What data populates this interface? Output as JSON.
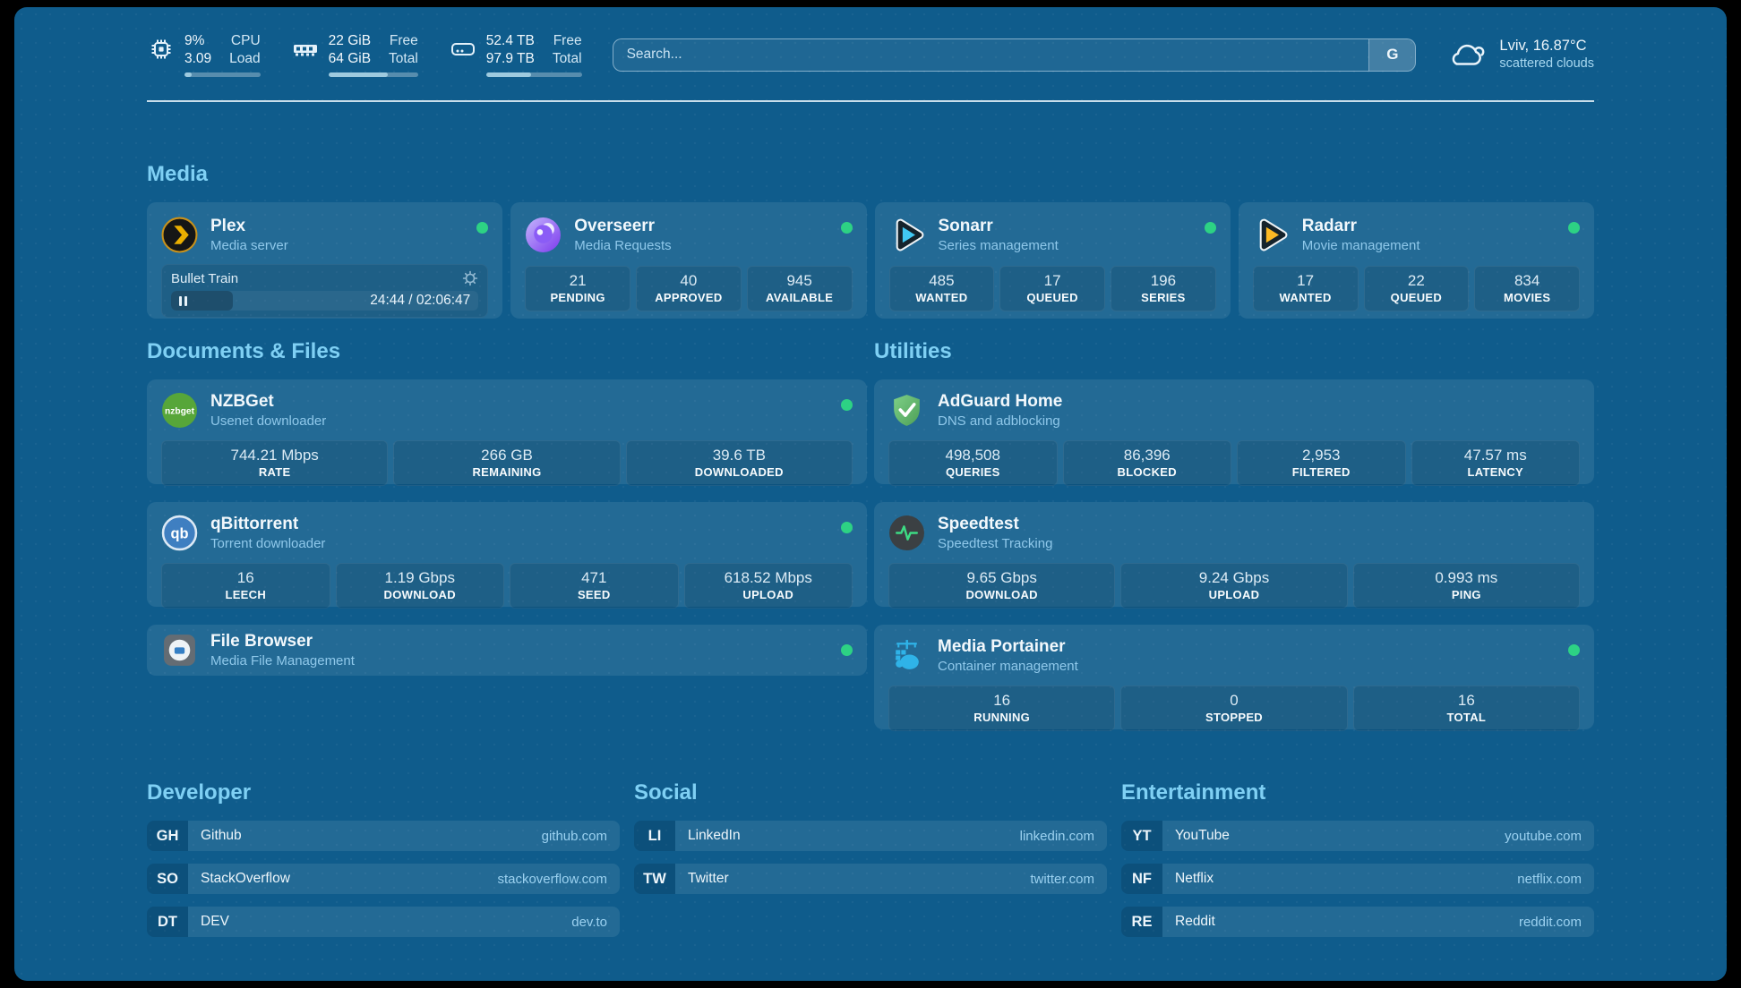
{
  "colors": {
    "background": "#0f5c8c",
    "card": "#2a6f9e",
    "heading": "#7fd0f4",
    "status_online": "#2dd284",
    "link_url": "#9bd1f0"
  },
  "header": {
    "stats": [
      {
        "icon": "cpu-icon",
        "value1": "9%",
        "value2": "3.09",
        "label1": "CPU",
        "label2": "Load",
        "progress": 10
      },
      {
        "icon": "memory-icon",
        "value1": "22 GiB",
        "value2": "64 GiB",
        "label1": "Free",
        "label2": "Total",
        "progress": 66
      },
      {
        "icon": "disk-icon",
        "value1": "52.4 TB",
        "value2": "97.9 TB",
        "label1": "Free",
        "label2": "Total",
        "progress": 47
      }
    ],
    "search": {
      "placeholder": "Search...",
      "button": "G"
    },
    "weather": {
      "location": "Lviv, 16.87°C",
      "condition": "scattered clouds"
    }
  },
  "sections": {
    "media": {
      "title": "Media"
    },
    "documents": {
      "title": "Documents & Files"
    },
    "utilities": {
      "title": "Utilities"
    }
  },
  "services": {
    "plex": {
      "name": "Plex",
      "description": "Media server",
      "status": "online",
      "now_playing": {
        "title": "Bullet Train",
        "time": "24:44 / 02:06:47",
        "progress": 20
      }
    },
    "overseerr": {
      "name": "Overseerr",
      "description": "Media Requests",
      "status": "online",
      "stats": [
        {
          "value": "21",
          "label": "PENDING"
        },
        {
          "value": "40",
          "label": "APPROVED"
        },
        {
          "value": "945",
          "label": "AVAILABLE"
        }
      ]
    },
    "sonarr": {
      "name": "Sonarr",
      "description": "Series management",
      "status": "online",
      "stats": [
        {
          "value": "485",
          "label": "WANTED"
        },
        {
          "value": "17",
          "label": "QUEUED"
        },
        {
          "value": "196",
          "label": "SERIES"
        }
      ]
    },
    "radarr": {
      "name": "Radarr",
      "description": "Movie management",
      "status": "online",
      "stats": [
        {
          "value": "17",
          "label": "WANTED"
        },
        {
          "value": "22",
          "label": "QUEUED"
        },
        {
          "value": "834",
          "label": "MOVIES"
        }
      ]
    },
    "nzbget": {
      "name": "NZBGet",
      "description": "Usenet downloader",
      "status": "online",
      "stats": [
        {
          "value": "744.21 Mbps",
          "label": "RATE"
        },
        {
          "value": "266 GB",
          "label": "REMAINING"
        },
        {
          "value": "39.6 TB",
          "label": "DOWNLOADED"
        }
      ]
    },
    "qbittorrent": {
      "name": "qBittorrent",
      "description": "Torrent downloader",
      "status": "online",
      "stats": [
        {
          "value": "16",
          "label": "LEECH"
        },
        {
          "value": "1.19 Gbps",
          "label": "DOWNLOAD"
        },
        {
          "value": "471",
          "label": "SEED"
        },
        {
          "value": "618.52 Mbps",
          "label": "UPLOAD"
        }
      ]
    },
    "filebrowser": {
      "name": "File Browser",
      "description": "Media File Management",
      "status": "online"
    },
    "adguard": {
      "name": "AdGuard Home",
      "description": "DNS and adblocking",
      "stats": [
        {
          "value": "498,508",
          "label": "QUERIES"
        },
        {
          "value": "86,396",
          "label": "BLOCKED"
        },
        {
          "value": "2,953",
          "label": "FILTERED"
        },
        {
          "value": "47.57 ms",
          "label": "LATENCY"
        }
      ]
    },
    "speedtest": {
      "name": "Speedtest",
      "description": "Speedtest Tracking",
      "stats": [
        {
          "value": "9.65 Gbps",
          "label": "DOWNLOAD"
        },
        {
          "value": "9.24 Gbps",
          "label": "UPLOAD"
        },
        {
          "value": "0.993 ms",
          "label": "PING"
        }
      ]
    },
    "portainer": {
      "name": "Media Portainer",
      "description": "Container management",
      "status": "online",
      "stats": [
        {
          "value": "16",
          "label": "RUNNING"
        },
        {
          "value": "0",
          "label": "STOPPED"
        },
        {
          "value": "16",
          "label": "TOTAL"
        }
      ]
    }
  },
  "link_groups": [
    {
      "title": "Developer",
      "items": [
        {
          "abbr": "GH",
          "name": "Github",
          "url": "github.com"
        },
        {
          "abbr": "SO",
          "name": "StackOverflow",
          "url": "stackoverflow.com"
        },
        {
          "abbr": "DT",
          "name": "DEV",
          "url": "dev.to"
        }
      ]
    },
    {
      "title": "Social",
      "items": [
        {
          "abbr": "LI",
          "name": "LinkedIn",
          "url": "linkedin.com"
        },
        {
          "abbr": "TW",
          "name": "Twitter",
          "url": "twitter.com"
        }
      ]
    },
    {
      "title": "Entertainment",
      "items": [
        {
          "abbr": "YT",
          "name": "YouTube",
          "url": "youtube.com"
        },
        {
          "abbr": "NF",
          "name": "Netflix",
          "url": "netflix.com"
        },
        {
          "abbr": "RE",
          "name": "Reddit",
          "url": "reddit.com"
        }
      ]
    }
  ]
}
